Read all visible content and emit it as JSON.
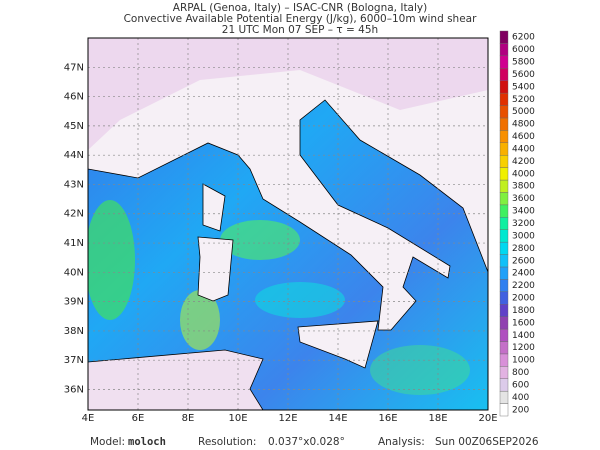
{
  "header": {
    "line1": "ARPAL (Genoa, Italy)  –  ISAC-CNR (Bologna, Italy)",
    "line2": "Convective Available Potential Energy (J/kg), 6000–10m wind shear",
    "line3": "21 UTC Mon 07 SEP  –  τ = 45h"
  },
  "map": {
    "lonlim": [
      4,
      20
    ],
    "latlim": [
      35.3,
      48.0
    ],
    "lonticks": [
      {
        "value": 4,
        "label": "4E"
      },
      {
        "value": 6,
        "label": "6E"
      },
      {
        "value": 8,
        "label": "8E"
      },
      {
        "value": 10,
        "label": "10E"
      },
      {
        "value": 12,
        "label": "12E"
      },
      {
        "value": 14,
        "label": "14E"
      },
      {
        "value": 16,
        "label": "16E"
      },
      {
        "value": 18,
        "label": "18E"
      },
      {
        "value": 20,
        "label": "20E"
      }
    ],
    "latticks": [
      {
        "value": 36,
        "label": "36N"
      },
      {
        "value": 37,
        "label": "37N"
      },
      {
        "value": 38,
        "label": "38N"
      },
      {
        "value": 39,
        "label": "39N"
      },
      {
        "value": 40,
        "label": "40N"
      },
      {
        "value": 41,
        "label": "41N"
      },
      {
        "value": 42,
        "label": "42N"
      },
      {
        "value": 43,
        "label": "43N"
      },
      {
        "value": 44,
        "label": "44N"
      },
      {
        "value": 45,
        "label": "45N"
      },
      {
        "value": 46,
        "label": "46N"
      },
      {
        "value": 47,
        "label": "47N"
      }
    ]
  },
  "colorbar": {
    "levels": [
      200,
      400,
      600,
      800,
      1000,
      1200,
      1400,
      1600,
      1800,
      2000,
      2200,
      2400,
      2600,
      2800,
      3000,
      3200,
      3400,
      3600,
      3800,
      4000,
      4200,
      4400,
      4600,
      4800,
      5000,
      5200,
      5400,
      5600,
      5800,
      6000,
      6200
    ],
    "colors": [
      "#ffffff",
      "#e4e4e4",
      "#dccbea",
      "#e2b2e2",
      "#d890d8",
      "#c470c8",
      "#b050c0",
      "#9040b0",
      "#6040c8",
      "#4060e0",
      "#3080f0",
      "#20a0f8",
      "#10c0f8",
      "#00d8f0",
      "#00e8d0",
      "#10f0a0",
      "#40f060",
      "#80f040",
      "#c0f020",
      "#f0f000",
      "#f8d000",
      "#f8b000",
      "#f89000",
      "#f07000",
      "#e85000",
      "#e03000",
      "#d01010",
      "#d00060",
      "#d00090",
      "#b00080",
      "#800060"
    ]
  },
  "footer": {
    "model_label": "Model:",
    "model": "moloch",
    "resolution_label": "Resolution:",
    "resolution": "0.037°x0.028°",
    "analysis_label": "Analysis:",
    "analysis": "Sun 00Z06SEP2026"
  }
}
